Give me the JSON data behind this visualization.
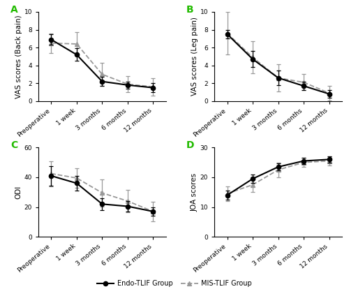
{
  "timepoints": [
    "Preoperative",
    "1 week",
    "3 months",
    "6 months",
    "12 months"
  ],
  "panel_A": {
    "title": "A",
    "ylabel": "VAS scores (Back pain)",
    "ylim": [
      0,
      10
    ],
    "yticks": [
      0,
      2,
      4,
      6,
      8,
      10
    ],
    "endo": {
      "mean": [
        6.9,
        5.2,
        2.2,
        1.8,
        1.5
      ],
      "err": [
        0.6,
        0.7,
        0.5,
        0.4,
        0.5
      ]
    },
    "mis": {
      "mean": [
        6.5,
        6.4,
        3.0,
        1.9,
        1.6
      ],
      "err": [
        1.1,
        1.3,
        1.3,
        0.9,
        1.0
      ]
    }
  },
  "panel_B": {
    "title": "B",
    "ylabel": "VAS scores (Leg pain)",
    "ylim": [
      0,
      10
    ],
    "yticks": [
      0,
      2,
      4,
      6,
      8,
      10
    ],
    "endo": {
      "mean": [
        7.5,
        4.7,
        2.6,
        1.7,
        0.8
      ],
      "err": [
        0.5,
        0.9,
        0.8,
        0.5,
        0.4
      ]
    },
    "mis": {
      "mean": [
        7.6,
        4.9,
        2.6,
        2.1,
        0.9
      ],
      "err": [
        2.4,
        1.8,
        1.5,
        0.9,
        0.8
      ]
    }
  },
  "panel_C": {
    "title": "C",
    "ylabel": "ODI",
    "ylim": [
      0,
      60
    ],
    "yticks": [
      0,
      20,
      40,
      60
    ],
    "endo": {
      "mean": [
        41.0,
        36.0,
        22.0,
        20.5,
        17.0
      ],
      "err": [
        6.5,
        5.0,
        4.0,
        3.5,
        3.0
      ]
    },
    "mis": {
      "mean": [
        42.5,
        39.5,
        29.5,
        24.0,
        17.0
      ],
      "err": [
        8.5,
        6.5,
        9.0,
        7.5,
        6.5
      ]
    }
  },
  "panel_D": {
    "title": "D",
    "ylabel": "JOA scores",
    "ylim": [
      0,
      30
    ],
    "yticks": [
      0,
      10,
      20,
      30
    ],
    "endo": {
      "mean": [
        14.0,
        19.5,
        23.5,
        25.5,
        26.0
      ],
      "err": [
        1.5,
        1.5,
        1.2,
        1.0,
        1.0
      ]
    },
    "mis": {
      "mean": [
        14.5,
        17.5,
        22.5,
        25.0,
        25.5
      ],
      "err": [
        2.5,
        2.5,
        2.5,
        1.5,
        1.5
      ]
    }
  },
  "endo_color": "#000000",
  "mis_color": "#999999",
  "endo_label": "Endo-TLIF Group",
  "mis_label": "MIS-TLIF Group",
  "label_color": "#22bb00",
  "bg_color": "#ffffff",
  "axis_fontsize": 7.5,
  "tick_fontsize": 6.5,
  "panel_label_fontsize": 10
}
